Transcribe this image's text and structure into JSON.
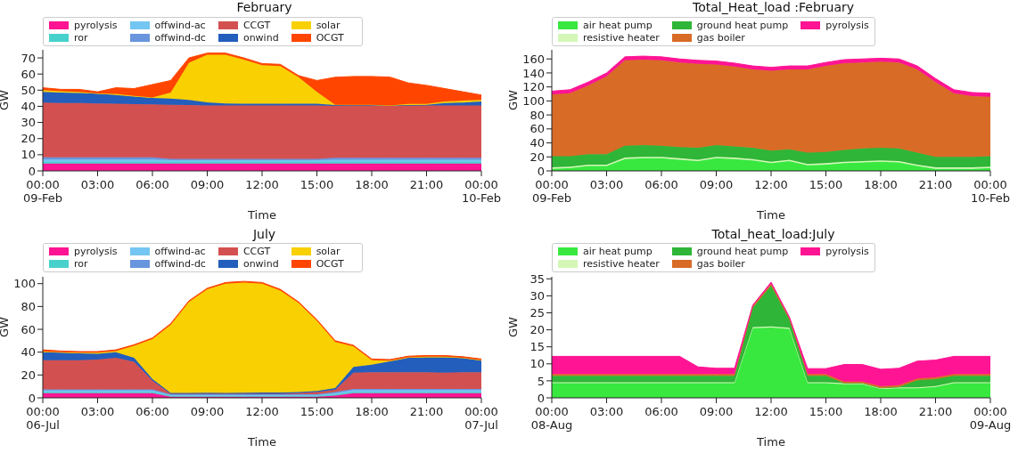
{
  "chart_data": [
    {
      "type": "area",
      "stacked": true,
      "title": "February",
      "xlabel": "Time",
      "ylabel": "GW",
      "legend": "top left",
      "xlim": [
        0,
        24
      ],
      "ylim": [
        0,
        75
      ],
      "yticks": [
        0,
        10,
        20,
        30,
        40,
        50,
        60,
        70
      ],
      "xticks": [
        {
          "value": 0,
          "label": "00:00\n09-Feb"
        },
        {
          "value": 3,
          "label": "03:00"
        },
        {
          "value": 6,
          "label": "06:00"
        },
        {
          "value": 9,
          "label": "09:00"
        },
        {
          "value": 12,
          "label": "12:00"
        },
        {
          "value": 15,
          "label": "15:00"
        },
        {
          "value": 18,
          "label": "18:00"
        },
        {
          "value": 21,
          "label": "21:00"
        },
        {
          "value": 24,
          "label": "00:00\n10-Feb"
        }
      ],
      "x": [
        0,
        1,
        2,
        3,
        4,
        5,
        6,
        7,
        8,
        9,
        10,
        11,
        12,
        13,
        14,
        15,
        16,
        17,
        18,
        19,
        20,
        21,
        22,
        23,
        24
      ],
      "series": [
        {
          "name": "pyrolysis",
          "color": "#ff1493",
          "values": [
            4.5,
            4.5,
            4.5,
            4.5,
            4.5,
            4.5,
            4.5,
            4.5,
            4.5,
            4.5,
            4.5,
            4.5,
            4.5,
            4.5,
            4.5,
            4.5,
            4.5,
            4.5,
            4.5,
            4.5,
            4.5,
            4.5,
            4.5,
            4.5,
            4.5
          ]
        },
        {
          "name": "ror",
          "color": "#48d1cc",
          "values": [
            1.2,
            1.2,
            1.2,
            1.2,
            1.2,
            1.2,
            1.2,
            1.2,
            1.2,
            1.2,
            1.2,
            1.2,
            1.2,
            1.2,
            1.2,
            1.2,
            1.2,
            1.2,
            1.2,
            1.2,
            1.2,
            1.2,
            1.2,
            1.2,
            1.2
          ]
        },
        {
          "name": "offwind-ac",
          "color": "#74c6f2",
          "values": [
            1.4,
            1.4,
            1.4,
            1.4,
            1.4,
            1.4,
            1.4,
            0.9,
            0.9,
            0.9,
            0.9,
            0.9,
            0.9,
            0.9,
            0.9,
            0.9,
            1.2,
            1.2,
            1.2,
            1.2,
            1.2,
            1.2,
            1.2,
            1.2,
            1.2
          ]
        },
        {
          "name": "offwind-dc",
          "color": "#6895dd",
          "values": [
            1.3,
            1.3,
            1.3,
            1.3,
            1.3,
            1.3,
            1.3,
            0.8,
            0.8,
            0.8,
            0.8,
            0.8,
            0.8,
            0.8,
            0.8,
            0.8,
            1.2,
            1.2,
            1.2,
            1.2,
            1.2,
            1.2,
            1.2,
            1.2,
            1.2
          ]
        },
        {
          "name": "CCGT",
          "color": "#d35050",
          "values": [
            33.9,
            33.6,
            33.6,
            33.4,
            33.3,
            33.0,
            32.8,
            33.6,
            33.4,
            33.2,
            33.1,
            33.1,
            33.1,
            33.1,
            33.1,
            33.1,
            32.2,
            32.4,
            32.4,
            32.4,
            32.4,
            32.4,
            32.4,
            32.4,
            32.4
          ]
        },
        {
          "name": "onwind",
          "color": "#235ebc",
          "values": [
            6.7,
            6.5,
            6.3,
            6.0,
            5.3,
            4.6,
            4.0,
            3.8,
            3.2,
            1.9,
            1.3,
            1.2,
            1.2,
            1.2,
            1.2,
            1.2,
            0.5,
            0.3,
            0.3,
            0,
            0.3,
            0.5,
            1.5,
            1.8,
            2.5
          ]
        },
        {
          "name": "solar",
          "color": "#f9d002",
          "values": [
            1.0,
            0.8,
            0.7,
            0.2,
            0.7,
            0.5,
            0.3,
            3.7,
            23,
            29.5,
            30.2,
            27.3,
            23.8,
            23.3,
            16.3,
            7.3,
            0.2,
            0.2,
            0.2,
            0.1,
            0.7,
            0.5,
            1.0,
            1.2,
            1.0
          ]
        },
        {
          "name": "OCGT",
          "color": "#ff4500",
          "values": [
            1.5,
            1.2,
            1.5,
            1.0,
            3.8,
            4.5,
            8.0,
            7.5,
            3.0,
            1,
            1,
            1,
            1,
            1,
            1.0,
            7.0,
            17.0,
            17.5,
            17.5,
            17.5,
            13.0,
            11.5,
            8.0,
            5.5,
            3.0
          ]
        }
      ]
    },
    {
      "type": "area",
      "stacked": true,
      "title": "Total_Heat_load :February",
      "xlabel": "Time",
      "ylabel": "GW",
      "legend": "top left",
      "xlim": [
        0,
        24
      ],
      "ylim": [
        0,
        173
      ],
      "yticks": [
        0,
        20,
        40,
        60,
        80,
        100,
        120,
        140,
        160
      ],
      "xticks": [
        {
          "value": 0,
          "label": "00:00\n09-Feb"
        },
        {
          "value": 3,
          "label": "03:00"
        },
        {
          "value": 6,
          "label": "06:00"
        },
        {
          "value": 9,
          "label": "09:00"
        },
        {
          "value": 12,
          "label": "12:00"
        },
        {
          "value": 15,
          "label": "15:00"
        },
        {
          "value": 18,
          "label": "18:00"
        },
        {
          "value": 21,
          "label": "21:00"
        },
        {
          "value": 24,
          "label": "00:00\n10-Feb"
        }
      ],
      "x": [
        0,
        1,
        2,
        3,
        4,
        5,
        6,
        7,
        8,
        9,
        10,
        11,
        12,
        13,
        14,
        15,
        16,
        17,
        18,
        19,
        20,
        21,
        22,
        23,
        24
      ],
      "series": [
        {
          "name": "air heat pump",
          "color": "#38e83f",
          "values": [
            3,
            4,
            7,
            7,
            17,
            18,
            18,
            16,
            14,
            18,
            17,
            15,
            11,
            14,
            8,
            9,
            11,
            12,
            13,
            12,
            7,
            3,
            3,
            3,
            4
          ]
        },
        {
          "name": "resistive heater",
          "color": "#d4f7b7",
          "values": [
            2,
            2,
            2,
            2,
            2,
            2,
            2,
            2,
            2,
            2,
            2,
            2,
            2,
            2,
            2,
            2,
            2,
            2,
            2,
            2,
            2,
            2,
            2,
            2,
            2
          ]
        },
        {
          "name": "ground heat pump",
          "color": "#2fb537",
          "values": [
            16,
            15,
            15,
            15,
            17,
            17,
            16,
            16,
            17,
            17,
            16,
            16,
            16,
            15,
            16,
            16,
            17,
            18,
            18,
            18,
            17,
            15,
            15,
            15,
            15
          ]
        },
        {
          "name": "gas boiler",
          "color": "#d86b26",
          "values": [
            88,
            90,
            98,
            111,
            122,
            122,
            122,
            121,
            120,
            115,
            114,
            112,
            114,
            114,
            119,
            123,
            124,
            123,
            123,
            123,
            119,
            107,
            91,
            87,
            85
          ]
        },
        {
          "name": "pyrolysis",
          "color": "#ff1493",
          "values": [
            5,
            5,
            5,
            5,
            5,
            5,
            5,
            5,
            5,
            5,
            5,
            5,
            5,
            5,
            5,
            5,
            5,
            5,
            5,
            5,
            5,
            5,
            5,
            5,
            5
          ]
        }
      ]
    },
    {
      "type": "area",
      "stacked": true,
      "title": "July",
      "xlabel": "Time",
      "ylabel": "GW",
      "legend": "top left",
      "xlim": [
        0,
        24
      ],
      "ylim": [
        0,
        106
      ],
      "yticks": [
        0,
        20,
        40,
        60,
        80,
        100
      ],
      "xticks": [
        {
          "value": 0,
          "label": "00:00\n06-Jul"
        },
        {
          "value": 3,
          "label": "03:00"
        },
        {
          "value": 6,
          "label": "06:00"
        },
        {
          "value": 9,
          "label": "09:00"
        },
        {
          "value": 12,
          "label": "12:00"
        },
        {
          "value": 15,
          "label": "15:00"
        },
        {
          "value": 18,
          "label": "18:00"
        },
        {
          "value": 21,
          "label": "21:00"
        },
        {
          "value": 24,
          "label": "00:00\n07-Jul"
        }
      ],
      "x": [
        0,
        1,
        2,
        3,
        4,
        5,
        6,
        7,
        8,
        9,
        10,
        11,
        12,
        13,
        14,
        15,
        16,
        17,
        18,
        19,
        20,
        21,
        22,
        23,
        24
      ],
      "series": [
        {
          "name": "pyrolysis",
          "color": "#ff1493",
          "values": [
            4,
            4,
            4,
            4,
            4,
            4,
            4,
            1,
            1,
            1,
            1,
            1,
            1,
            1,
            1,
            1,
            2,
            4,
            4,
            4,
            4,
            4,
            4,
            4,
            4
          ]
        },
        {
          "name": "ror",
          "color": "#48d1cc",
          "values": [
            1.3,
            1.3,
            1.3,
            1.3,
            1.3,
            1.3,
            1.3,
            0.8,
            0.8,
            0.8,
            0.8,
            0.8,
            0.8,
            0.8,
            0.8,
            0.8,
            1,
            1.3,
            1.3,
            1.3,
            1.3,
            1.3,
            1.3,
            1.3,
            1.3
          ]
        },
        {
          "name": "offwind-ac",
          "color": "#74c6f2",
          "values": [
            1.2,
            1.2,
            1.2,
            1.2,
            1.2,
            1.2,
            1.2,
            0.7,
            0.7,
            0.7,
            0.7,
            0.7,
            0.7,
            0.7,
            0.7,
            0.7,
            1,
            1.5,
            1.5,
            1.5,
            1.5,
            1.5,
            1.5,
            1.5,
            1.5
          ]
        },
        {
          "name": "offwind-dc",
          "color": "#6895dd",
          "values": [
            1,
            1,
            1,
            1,
            1,
            1,
            1,
            0.7,
            0.7,
            0.7,
            0.7,
            0.7,
            0.7,
            0.7,
            0.7,
            0.7,
            1,
            1,
            1,
            1,
            1,
            1,
            1,
            1,
            1
          ]
        },
        {
          "name": "CCGT",
          "color": "#d35050",
          "values": [
            25.5,
            25.5,
            25.5,
            26,
            27.5,
            24,
            7.5,
            0.3,
            0.3,
            0.3,
            0.3,
            0.3,
            0.3,
            0.3,
            0.8,
            1.8,
            2,
            14.2,
            14.7,
            14.7,
            14.7,
            14.7,
            14.2,
            14.7,
            14.7
          ]
        },
        {
          "name": "onwind",
          "color": "#235ebc",
          "values": [
            7,
            6.5,
            6,
            5,
            5,
            3.5,
            1.5,
            0.7,
            0.7,
            1.0,
            0.7,
            0.9,
            1.2,
            1.2,
            1.0,
            1.0,
            1.5,
            5,
            6.5,
            9.5,
            12.5,
            13,
            13.5,
            12.5,
            10
          ]
        },
        {
          "name": "solar",
          "color": "#f9d002",
          "values": [
            0.5,
            0.5,
            0.5,
            1,
            1,
            10.5,
            35,
            59.8,
            79.8,
            90.5,
            95.8,
            96.6,
            95.3,
            89.3,
            78,
            61.5,
            40.5,
            18,
            4,
            0.5,
            0.5,
            0.5,
            0.5,
            0,
            0.5
          ]
        },
        {
          "name": "OCGT",
          "color": "#ff4500",
          "values": [
            1.5,
            1,
            1,
            1,
            1,
            1,
            1,
            1,
            1,
            1,
            1,
            1,
            1,
            1,
            1,
            1,
            1,
            1,
            1,
            1,
            1,
            1,
            1,
            1,
            1
          ]
        }
      ]
    },
    {
      "type": "area",
      "stacked": true,
      "title": "Total_heat_load:July",
      "xlabel": "Time",
      "ylabel": "GW",
      "legend": "top left",
      "xlim": [
        0,
        24
      ],
      "ylim": [
        0,
        35.6
      ],
      "yticks": [
        0,
        5,
        10,
        15,
        20,
        25,
        30,
        35
      ],
      "xticks": [
        {
          "value": 0,
          "label": "00:00\n08-Aug"
        },
        {
          "value": 3,
          "label": "03:00"
        },
        {
          "value": 6,
          "label": "06:00"
        },
        {
          "value": 9,
          "label": "09:00"
        },
        {
          "value": 12,
          "label": "12:00"
        },
        {
          "value": 15,
          "label": "15:00"
        },
        {
          "value": 18,
          "label": "18:00"
        },
        {
          "value": 21,
          "label": "21:00"
        },
        {
          "value": 24,
          "label": "00:00\n09-Aug"
        }
      ],
      "x": [
        0,
        1,
        2,
        3,
        4,
        5,
        6,
        7,
        8,
        9,
        10,
        11,
        12,
        13,
        14,
        15,
        16,
        17,
        18,
        19,
        20,
        21,
        22,
        23,
        24
      ],
      "series": [
        {
          "name": "air heat pump",
          "color": "#38e83f",
          "values": [
            4.3,
            4.3,
            4.3,
            4.3,
            4.3,
            4.3,
            4.3,
            4.3,
            4.3,
            4.3,
            4.3,
            20.5,
            20.7,
            20.3,
            4.3,
            4.3,
            4.0,
            4.0,
            2.6,
            2.8,
            2.8,
            3.2,
            4.3,
            4.3,
            4.3
          ]
        },
        {
          "name": "resistive heater",
          "color": "#d4f7b7",
          "values": [
            0.3,
            0.3,
            0.3,
            0.3,
            0.3,
            0.3,
            0.3,
            0.3,
            0.3,
            0.3,
            0.3,
            0.3,
            0.3,
            0.3,
            0.3,
            0.3,
            0.3,
            0.3,
            0.3,
            0.3,
            0.3,
            0.3,
            0.3,
            0.3,
            0.3
          ]
        },
        {
          "name": "ground heat pump",
          "color": "#2fb537",
          "values": [
            1.9,
            1.9,
            1.9,
            1.9,
            1.9,
            1.9,
            1.9,
            1.9,
            1.9,
            1.9,
            1.9,
            5.7,
            12.0,
            2.4,
            1.9,
            1.9,
            0,
            0,
            0,
            0.1,
            2.1,
            2.0,
            1.9,
            1.9,
            1.9
          ]
        },
        {
          "name": "gas boiler",
          "color": "#d86b26",
          "values": [
            0.5,
            0.5,
            0.5,
            0.5,
            0.5,
            0.5,
            0.5,
            0.5,
            0.5,
            0.5,
            0.5,
            0.5,
            0.5,
            0.5,
            0.5,
            0.5,
            0.5,
            0.5,
            0.5,
            0.5,
            0.5,
            0.5,
            0.5,
            0.5,
            0.5
          ]
        },
        {
          "name": "pyrolysis",
          "color": "#ff1493",
          "values": [
            5.2,
            5.2,
            5.2,
            5.2,
            5.2,
            5.2,
            5.2,
            5.2,
            2.1,
            1.7,
            1.7,
            0.3,
            0.5,
            0.3,
            1.6,
            1.6,
            5.0,
            5.0,
            5.0,
            5.0,
            5.1,
            5.1,
            5.2,
            5.2,
            5.2
          ]
        }
      ]
    }
  ]
}
